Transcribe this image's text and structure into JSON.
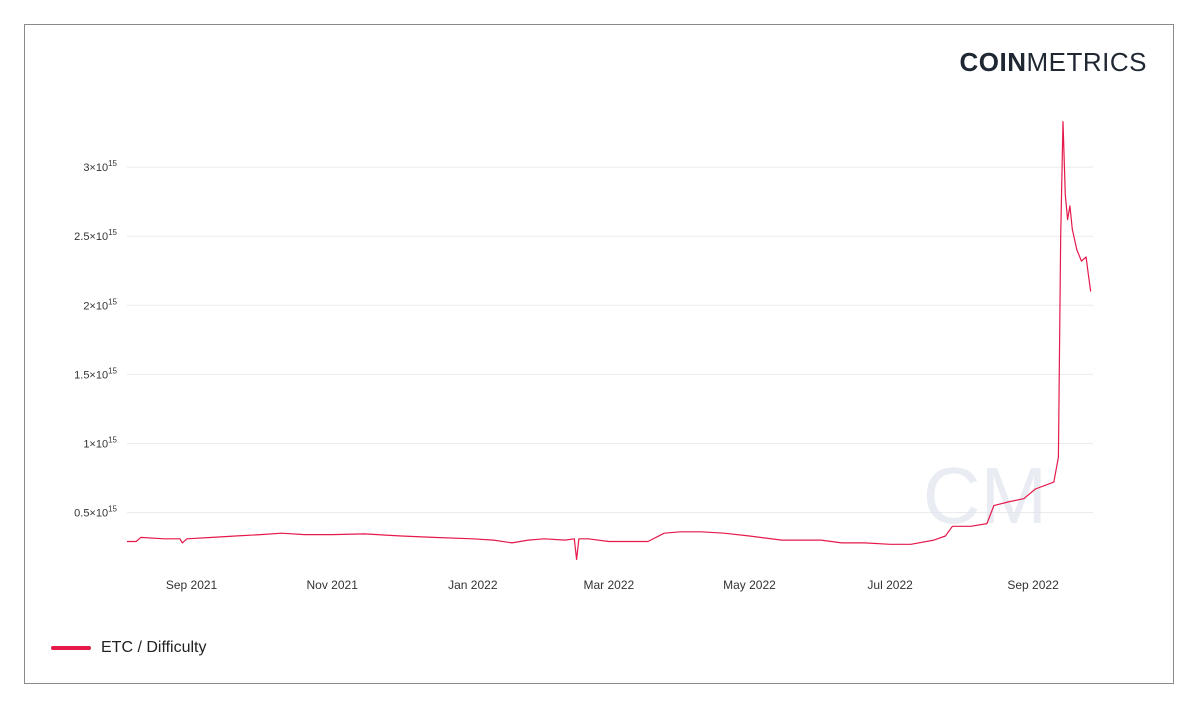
{
  "logo": {
    "bold": "COIN",
    "light": "METRICS"
  },
  "watermark": "CM",
  "colors": {
    "line": "#e5194a",
    "grid": "#ebebeb",
    "axis_text": "#333333",
    "frame": "#8a8a8a"
  },
  "legend": {
    "label": "ETC / Difficulty"
  },
  "chart_data": {
    "type": "line",
    "title": "",
    "xlabel": "",
    "ylabel": "",
    "ylim": [
      120000000000000.0,
      3450000000000000.0
    ],
    "xlim": [
      "2021-08-04",
      "2022-09-27"
    ],
    "yticks": [
      {
        "value": 500000000000000.0,
        "mantissa": "0.5",
        "exp": "15"
      },
      {
        "value": 1000000000000000.0,
        "mantissa": "1",
        "exp": "15"
      },
      {
        "value": 1500000000000000.0,
        "mantissa": "1.5",
        "exp": "15"
      },
      {
        "value": 2000000000000000.0,
        "mantissa": "2",
        "exp": "15"
      },
      {
        "value": 2500000000000000.0,
        "mantissa": "2.5",
        "exp": "15"
      },
      {
        "value": 3000000000000000.0,
        "mantissa": "3",
        "exp": "15"
      }
    ],
    "xticks": [
      {
        "date": "2021-09-01",
        "label": "Sep 2021"
      },
      {
        "date": "2021-11-01",
        "label": "Nov 2021"
      },
      {
        "date": "2022-01-01",
        "label": "Jan 2022"
      },
      {
        "date": "2022-03-01",
        "label": "Mar 2022"
      },
      {
        "date": "2022-05-01",
        "label": "May 2022"
      },
      {
        "date": "2022-07-01",
        "label": "Jul 2022"
      },
      {
        "date": "2022-09-01",
        "label": "Sep 2022"
      }
    ],
    "grid": true,
    "legend_position": "bottom-left",
    "series": [
      {
        "name": "ETC / Difficulty",
        "points": [
          [
            "2021-08-04",
            290000000000000.0
          ],
          [
            "2021-08-08",
            290000000000000.0
          ],
          [
            "2021-08-10",
            320000000000000.0
          ],
          [
            "2021-08-20",
            310000000000000.0
          ],
          [
            "2021-08-27",
            310000000000000.0
          ],
          [
            "2021-08-28",
            280000000000000.0
          ],
          [
            "2021-08-30",
            310000000000000.0
          ],
          [
            "2021-09-10",
            320000000000000.0
          ],
          [
            "2021-09-20",
            330000000000000.0
          ],
          [
            "2021-10-01",
            340000000000000.0
          ],
          [
            "2021-10-10",
            350000000000000.0
          ],
          [
            "2021-10-20",
            340000000000000.0
          ],
          [
            "2021-11-01",
            340000000000000.0
          ],
          [
            "2021-11-15",
            345000000000000.0
          ],
          [
            "2021-12-01",
            330000000000000.0
          ],
          [
            "2021-12-15",
            320000000000000.0
          ],
          [
            "2022-01-01",
            310000000000000.0
          ],
          [
            "2022-01-10",
            300000000000000.0
          ],
          [
            "2022-01-18",
            280000000000000.0
          ],
          [
            "2022-01-25",
            300000000000000.0
          ],
          [
            "2022-02-01",
            310000000000000.0
          ],
          [
            "2022-02-10",
            300000000000000.0
          ],
          [
            "2022-02-14",
            310000000000000.0
          ],
          [
            "2022-02-15",
            160000000000000.0
          ],
          [
            "2022-02-16",
            310000000000000.0
          ],
          [
            "2022-02-20",
            310000000000000.0
          ],
          [
            "2022-03-01",
            290000000000000.0
          ],
          [
            "2022-03-10",
            290000000000000.0
          ],
          [
            "2022-03-18",
            290000000000000.0
          ],
          [
            "2022-03-25",
            350000000000000.0
          ],
          [
            "2022-04-01",
            360000000000000.0
          ],
          [
            "2022-04-10",
            360000000000000.0
          ],
          [
            "2022-04-20",
            350000000000000.0
          ],
          [
            "2022-05-01",
            330000000000000.0
          ],
          [
            "2022-05-15",
            300000000000000.0
          ],
          [
            "2022-06-01",
            300000000000000.0
          ],
          [
            "2022-06-10",
            280000000000000.0
          ],
          [
            "2022-06-20",
            280000000000000.0
          ],
          [
            "2022-07-01",
            270000000000000.0
          ],
          [
            "2022-07-10",
            270000000000000.0
          ],
          [
            "2022-07-20",
            300000000000000.0
          ],
          [
            "2022-07-25",
            330000000000000.0
          ],
          [
            "2022-07-28",
            400000000000000.0
          ],
          [
            "2022-08-05",
            400000000000000.0
          ],
          [
            "2022-08-12",
            420000000000000.0
          ],
          [
            "2022-08-15",
            550000000000000.0
          ],
          [
            "2022-08-22",
            580000000000000.0
          ],
          [
            "2022-08-28",
            600000000000000.0
          ],
          [
            "2022-09-02",
            670000000000000.0
          ],
          [
            "2022-09-10",
            720000000000000.0
          ],
          [
            "2022-09-12",
            900000000000000.0
          ],
          [
            "2022-09-13",
            2500000000000000.0
          ],
          [
            "2022-09-14",
            3330000000000000.0
          ],
          [
            "2022-09-15",
            2800000000000000.0
          ],
          [
            "2022-09-16",
            2620000000000000.0
          ],
          [
            "2022-09-17",
            2720000000000000.0
          ],
          [
            "2022-09-18",
            2550000000000000.0
          ],
          [
            "2022-09-20",
            2400000000000000.0
          ],
          [
            "2022-09-22",
            2320000000000000.0
          ],
          [
            "2022-09-24",
            2350000000000000.0
          ],
          [
            "2022-09-25",
            2220000000000000.0
          ],
          [
            "2022-09-26",
            2100000000000000.0
          ]
        ]
      }
    ]
  }
}
